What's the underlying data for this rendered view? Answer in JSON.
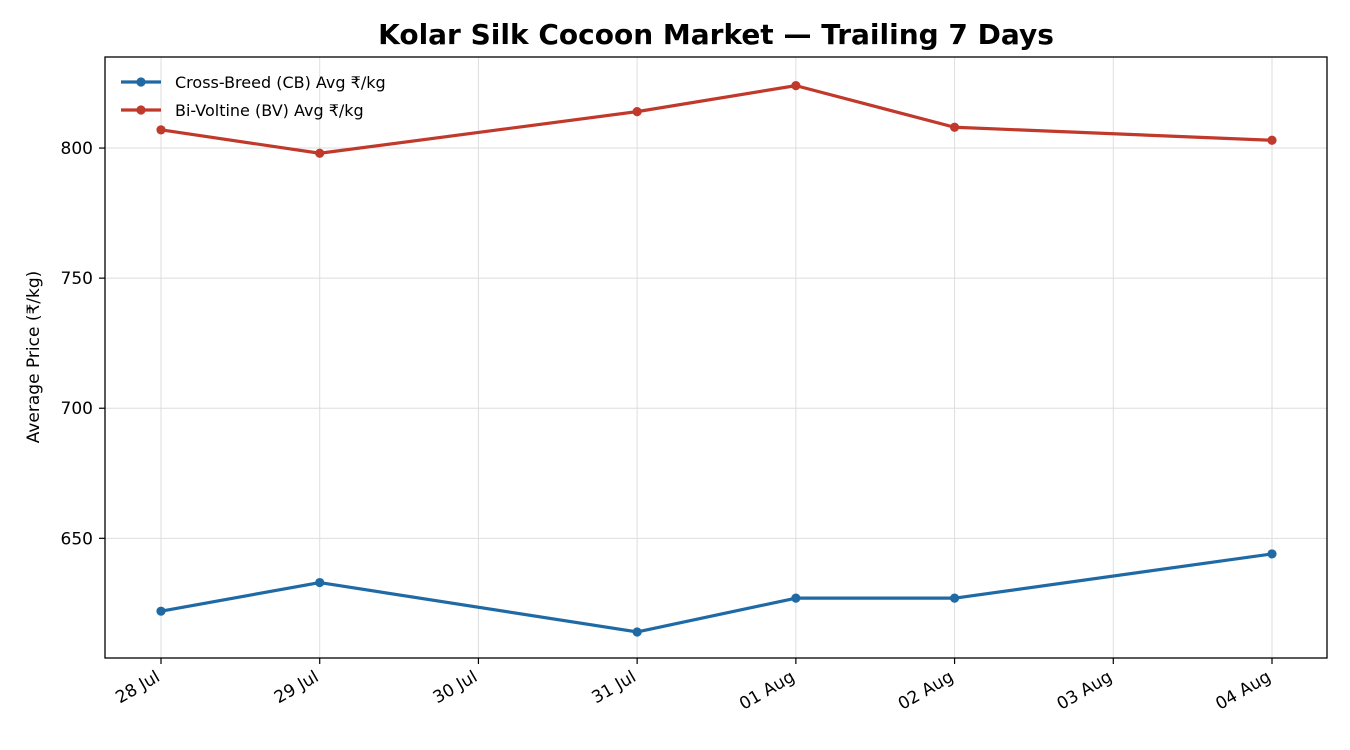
{
  "chart_data": {
    "type": "line",
    "title": "Kolar Silk Cocoon Market — Trailing 7 Days",
    "xlabel": "",
    "ylabel": "Average Price (₹/kg)",
    "categories": [
      "28 Jul",
      "29 Jul",
      "30 Jul",
      "31 Jul",
      "01 Aug",
      "02 Aug",
      "03 Aug",
      "04 Aug"
    ],
    "series": [
      {
        "name": "Cross-Breed (CB) Avg ₹/kg",
        "color": "#1f6aa5",
        "x": [
          "28 Jul",
          "29 Jul",
          "31 Jul",
          "01 Aug",
          "02 Aug",
          "04 Aug"
        ],
        "values": [
          622,
          633,
          614,
          627,
          627,
          644
        ]
      },
      {
        "name": "Bi-Voltine (BV) Avg ₹/kg",
        "color": "#c0392b",
        "x": [
          "28 Jul",
          "29 Jul",
          "31 Jul",
          "01 Aug",
          "02 Aug",
          "04 Aug"
        ],
        "values": [
          807,
          798,
          814,
          824,
          808,
          803
        ]
      }
    ],
    "yticks": [
      650,
      700,
      750,
      800
    ],
    "ylim": [
      604,
      835
    ],
    "grid": true,
    "legend": "top-left"
  }
}
